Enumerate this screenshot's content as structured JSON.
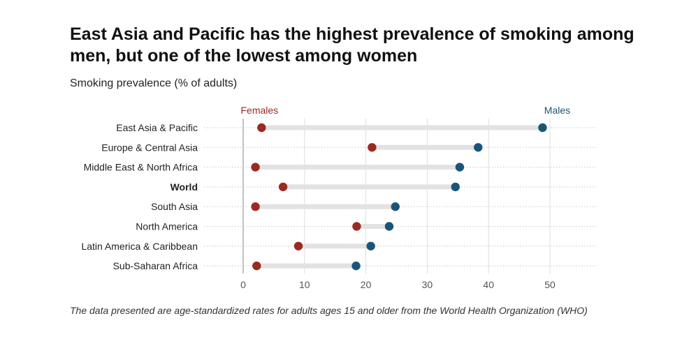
{
  "chart_data": {
    "type": "dumbbell",
    "title": "East Asia and Pacific has the highest prevalence of smoking among men, but one of the lowest among women",
    "subtitle": "Smoking prevalence (% of adults)",
    "footnote": "The data presented are age-standardized rates for adults ages 15 and older from the World Health Organization (WHO)",
    "categories": [
      "East Asia & Pacific",
      "Europe & Central Asia",
      "Middle East & North Africa",
      "World",
      "South Asia",
      "North America",
      "Latin America & Caribbean",
      "Sub-Saharan Africa"
    ],
    "highlight_category": "World",
    "series": [
      {
        "name": "Females",
        "color": "#9b2a22",
        "values": [
          3,
          21,
          2,
          6.5,
          2,
          18.5,
          9,
          2.2
        ]
      },
      {
        "name": "Males",
        "color": "#1b5479",
        "values": [
          48.8,
          38.3,
          35.3,
          34.6,
          24.8,
          23.8,
          20.8,
          18.4
        ]
      }
    ],
    "xlim": [
      0,
      57
    ],
    "xticks": [
      0,
      10,
      20,
      30,
      40,
      50
    ],
    "xlabel": "",
    "ylabel": "",
    "grid": true
  }
}
